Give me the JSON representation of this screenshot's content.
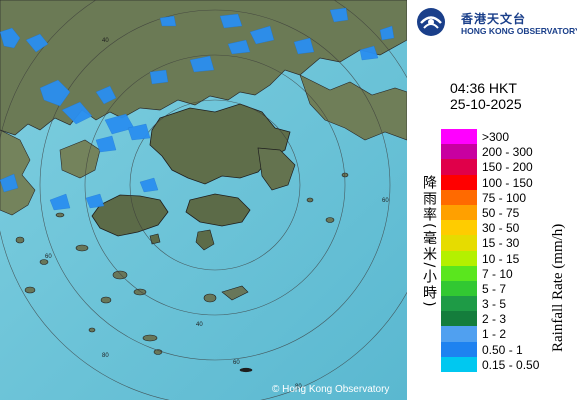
{
  "header": {
    "org_name_zh": "香港天文台",
    "org_name_en": "HONG KONG OBSERVATORY"
  },
  "timestamp": {
    "time": "04:36 HKT",
    "date": "25-10-2025"
  },
  "map": {
    "range_ring_labels": [
      "40",
      "60",
      "60",
      "80",
      "40",
      "60",
      "80"
    ],
    "copyright": "© Hong Kong Observatory",
    "colors": {
      "sea": "#6ec3d8",
      "land": "#6b7a55",
      "rain": "#2a8ff0",
      "rings": "#4a4a4a"
    },
    "icons": [
      "hko-logo-icon",
      "radar-range-rings",
      "rain-echo"
    ]
  },
  "legend": {
    "title_zh": "降雨率(毫米/小時)",
    "title_en": "Rainfall Rate (mm/h)",
    "items": [
      {
        "range": ">300",
        "color": "#ff00ff"
      },
      {
        "range": "200 - 300",
        "color": "#c800a0"
      },
      {
        "range": "150 - 200",
        "color": "#e0004a"
      },
      {
        "range": "100 - 150",
        "color": "#ff0000"
      },
      {
        "range": "75 - 100",
        "color": "#ff6a00"
      },
      {
        "range": "50 - 75",
        "color": "#ffa000"
      },
      {
        "range": "30 - 50",
        "color": "#ffcc00"
      },
      {
        "range": "15 - 30",
        "color": "#e6dc00"
      },
      {
        "range": "10 - 15",
        "color": "#b4f000"
      },
      {
        "range": "7 - 10",
        "color": "#5ae61e"
      },
      {
        "range": "5 - 7",
        "color": "#32c832"
      },
      {
        "range": "3 - 5",
        "color": "#1e9b46"
      },
      {
        "range": "2 - 3",
        "color": "#147d3c"
      },
      {
        "range": "1 - 2",
        "color": "#50a0f0"
      },
      {
        "range": "0.50 - 1",
        "color": "#1e82f0"
      },
      {
        "range": "0.15 - 0.50",
        "color": "#00c8f0"
      }
    ]
  }
}
